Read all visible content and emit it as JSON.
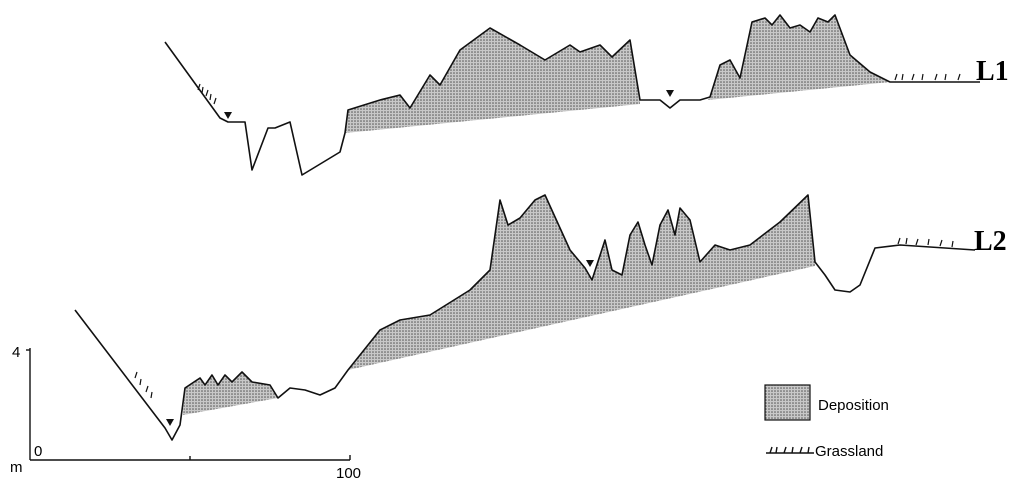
{
  "profiles": [
    {
      "label": "L1"
    },
    {
      "label": "L2"
    }
  ],
  "legend": [
    {
      "label": "Deposition"
    },
    {
      "label": "Grassland"
    }
  ],
  "scale": {
    "unit": "m",
    "y_max": 4,
    "y_min": 0,
    "x_max": 100
  }
}
